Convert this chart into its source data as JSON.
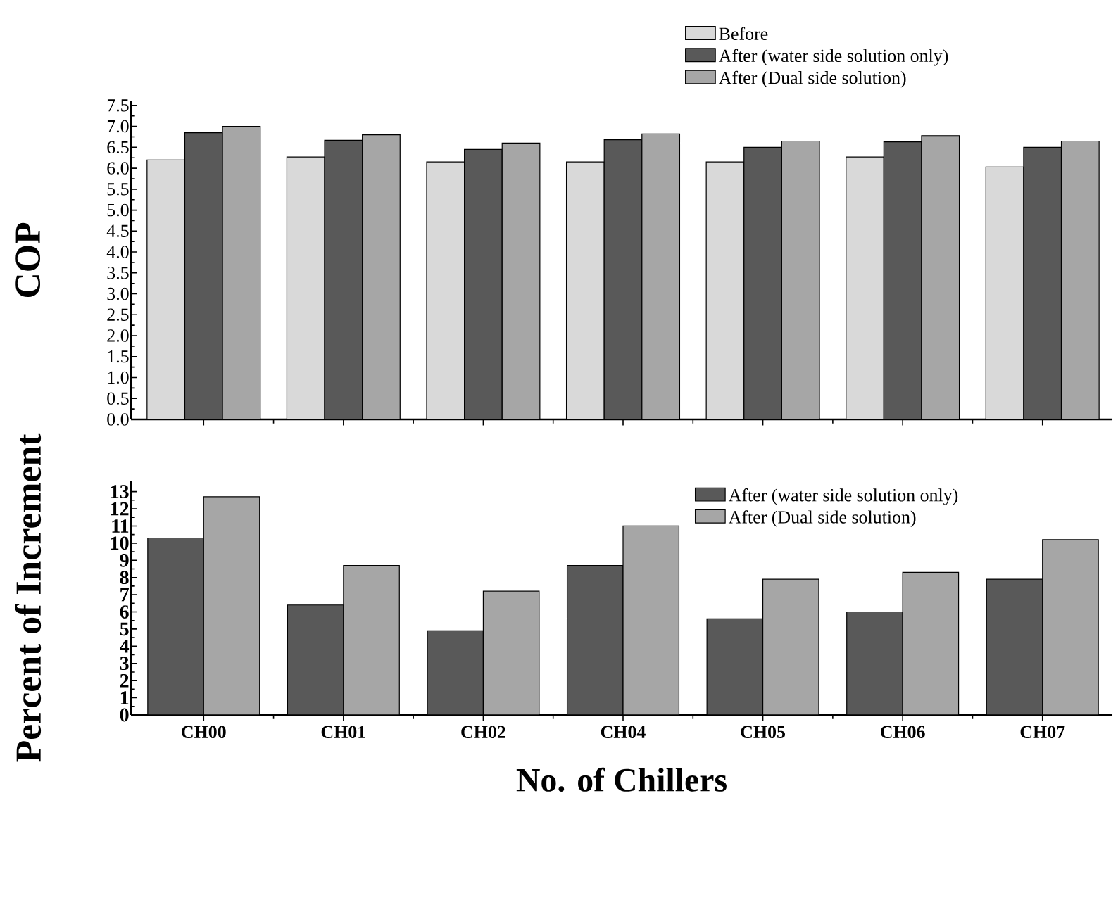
{
  "chart_data": [
    {
      "type": "bar",
      "ylabel": "COP",
      "categories": [
        null,
        null,
        null,
        null,
        null,
        null,
        null
      ],
      "tick_labels": "y",
      "legend": "top right",
      "ylim": [
        0,
        7.6
      ],
      "yticks": [
        {
          "value": 0,
          "label": "0.0"
        },
        0.5,
        {
          "value": 1,
          "label": "1.0"
        },
        1.5,
        {
          "value": 2,
          "label": "2.0"
        },
        2.5,
        {
          "value": 3,
          "label": "3.0"
        },
        3.5,
        {
          "value": 4,
          "label": "4.0"
        },
        4.5,
        {
          "value": 5,
          "label": "5.0"
        },
        5.5,
        {
          "value": 6,
          "label": "6.0"
        },
        6.5,
        {
          "value": 7,
          "label": "7.0"
        },
        7.5
      ],
      "series": [
        {
          "name": "Before",
          "color": "#d9d9d9",
          "values": [
            6.2,
            6.27,
            6.15,
            6.15,
            6.15,
            6.27,
            6.03
          ]
        },
        {
          "name": "After (water side solution only)",
          "color": "#595959",
          "values": [
            6.85,
            6.67,
            6.45,
            6.68,
            6.5,
            6.63,
            6.5
          ]
        },
        {
          "name": "After (Dual side solution)",
          "color": "#a6a6a6",
          "values": [
            7.0,
            6.8,
            6.6,
            6.82,
            6.65,
            6.78,
            6.65
          ]
        }
      ]
    },
    {
      "type": "bar",
      "xlabel": "No. of Chillers",
      "ylabel": "Percent of Increment",
      "categories": [
        "CH00",
        "CH01",
        "CH02",
        "CH04",
        "CH05",
        "CH06",
        "CH07"
      ],
      "legend": "top right",
      "ylim": [
        0,
        13.6
      ],
      "yticks": [
        0,
        1,
        2,
        3,
        4,
        5,
        6,
        7,
        8,
        9,
        10,
        11,
        12,
        13
      ],
      "series": [
        {
          "name": "After (water side solution only)",
          "color": "#595959",
          "values": [
            10.3,
            6.4,
            4.9,
            8.7,
            5.6,
            6.0,
            7.9
          ]
        },
        {
          "name": "After (Dual side solution)",
          "color": "#a6a6a6",
          "values": [
            12.7,
            8.7,
            7.2,
            11.0,
            7.9,
            8.3,
            10.2
          ]
        }
      ]
    }
  ]
}
